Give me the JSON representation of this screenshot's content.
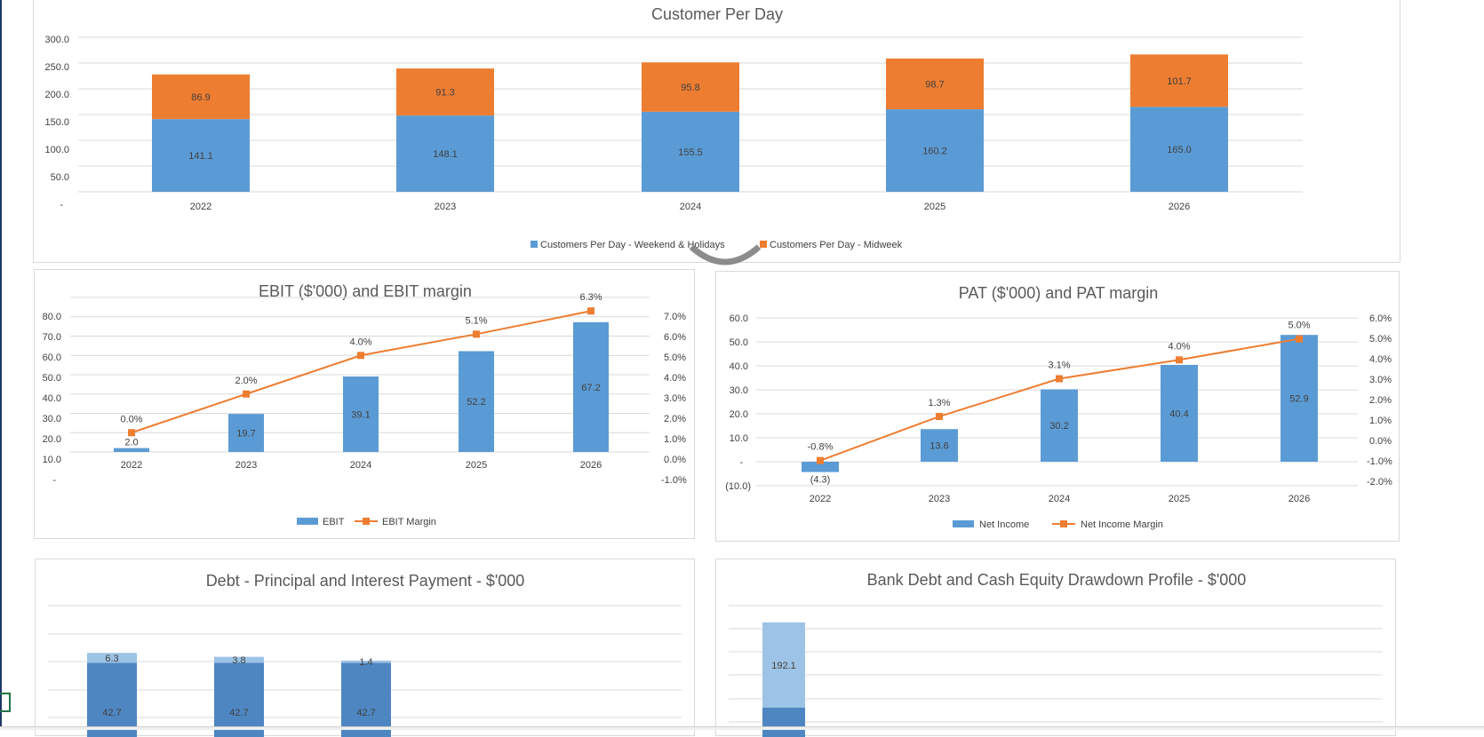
{
  "colors": {
    "blue": "#5B9BD5",
    "orange": "#ED7D31",
    "dark_blue": "#4E86C2",
    "light_blue": "#9DC3E6",
    "grid": "#D9D9D9",
    "text": "#404040",
    "title": "#595959"
  },
  "customers_chart": {
    "title": "Customer Per Day",
    "yticks": [
      "300.0",
      "250.0",
      "200.0",
      "150.0",
      "100.0",
      "50.0",
      "-"
    ],
    "legend": [
      "Customers Per Day - Weekend & Holidays",
      "Customers Per Day - Midweek"
    ]
  },
  "ebit_chart": {
    "title": "EBIT ($'000) and EBIT margin",
    "yticks": [
      "80.0",
      "70.0",
      "60.0",
      "50.0",
      "40.0",
      "30.0",
      "20.0",
      "10.0",
      "-"
    ],
    "y2ticks": [
      "7.0%",
      "6.0%",
      "5.0%",
      "4.0%",
      "3.0%",
      "2.0%",
      "1.0%",
      "0.0%",
      "-1.0%"
    ],
    "legend": [
      "EBIT",
      "EBIT Margin"
    ]
  },
  "pat_chart": {
    "title": "PAT ($'000) and PAT margin",
    "yticks": [
      "60.0",
      "50.0",
      "40.0",
      "30.0",
      "20.0",
      "10.0",
      "-",
      "(10.0)"
    ],
    "y2ticks": [
      "6.0%",
      "5.0%",
      "4.0%",
      "3.0%",
      "2.0%",
      "1.0%",
      "0.0%",
      "-1.0%",
      "-2.0%"
    ],
    "legend": [
      "Net Income",
      "Net Income Margin"
    ]
  },
  "debt_chart": {
    "title": "Debt - Principal and Interest Payment - $'000"
  },
  "drawdown_chart": {
    "title": "Bank Debt and Cash Equity Drawdown Profile - $'000"
  },
  "chart_data": [
    {
      "type": "bar",
      "stacked": true,
      "title": "Customer Per Day",
      "categories": [
        "2022",
        "2023",
        "2024",
        "2025",
        "2026"
      ],
      "series": [
        {
          "name": "Customers Per Day - Weekend & Holidays",
          "values": [
            141.1,
            148.1,
            155.5,
            160.2,
            165.0
          ],
          "labels": [
            "141.1",
            "148.1",
            "155.5",
            "160.2",
            "165.0"
          ]
        },
        {
          "name": "Customers Per Day - Midweek",
          "values": [
            86.9,
            91.3,
            95.8,
            98.7,
            101.7
          ],
          "labels": [
            "86.9",
            "91.3",
            "95.8",
            "98.7",
            "101.7"
          ]
        }
      ],
      "ylim": [
        0,
        300
      ],
      "grid": true,
      "legend_position": "bottom"
    },
    {
      "type": "bar",
      "combo": "bar-line",
      "title": "EBIT ($'000) and EBIT margin",
      "categories": [
        "2022",
        "2023",
        "2024",
        "2025",
        "2026"
      ],
      "series": [
        {
          "name": "EBIT",
          "axis": "left",
          "values": [
            2.0,
            19.7,
            39.1,
            52.2,
            67.2
          ],
          "labels": [
            "2.0",
            "19.7",
            "39.1",
            "52.2",
            "67.2"
          ]
        },
        {
          "name": "EBIT Margin",
          "axis": "right",
          "type": "line",
          "values": [
            0.0,
            2.0,
            4.0,
            5.1,
            6.3
          ],
          "labels": [
            "0.0%",
            "2.0%",
            "4.0%",
            "5.1%",
            "6.3%"
          ]
        }
      ],
      "ylim": [
        0,
        80
      ],
      "y2lim": [
        -1,
        7
      ],
      "grid": true,
      "legend_position": "bottom"
    },
    {
      "type": "bar",
      "combo": "bar-line",
      "title": "PAT ($'000) and PAT margin",
      "categories": [
        "2022",
        "2023",
        "2024",
        "2025",
        "2026"
      ],
      "series": [
        {
          "name": "Net Income",
          "axis": "left",
          "values": [
            -4.3,
            13.6,
            30.2,
            40.4,
            52.9
          ],
          "labels": [
            "(4.3)",
            "13.6",
            "30.2",
            "40.4",
            "52.9"
          ]
        },
        {
          "name": "Net Income Margin",
          "axis": "right",
          "type": "line",
          "values": [
            -0.8,
            1.3,
            3.1,
            4.0,
            5.0
          ],
          "labels": [
            "-0.8%",
            "1.3%",
            "3.1%",
            "4.0%",
            "5.0%"
          ]
        }
      ],
      "ylim": [
        -10,
        60
      ],
      "y2lim": [
        -2,
        6
      ],
      "grid": true,
      "legend_position": "bottom"
    },
    {
      "type": "bar",
      "stacked": true,
      "title": "Debt - Principal and Interest Payment - $'000",
      "categories": [
        "",
        "",
        ""
      ],
      "series": [
        {
          "values": [
            42.7,
            42.7,
            42.7
          ],
          "labels": [
            "42.7",
            "42.7",
            "42.7"
          ]
        },
        {
          "values": [
            6.3,
            3.8,
            1.4
          ],
          "labels": [
            "6.3",
            "3.8",
            "1.4"
          ]
        }
      ],
      "grid": true
    },
    {
      "type": "bar",
      "stacked": true,
      "title": "Bank Debt and Cash Equity Drawdown Profile - $'000",
      "categories": [
        ""
      ],
      "series": [
        {
          "values": [
            null
          ],
          "labels": [
            ""
          ]
        },
        {
          "values": [
            192.1
          ],
          "labels": [
            "192.1"
          ]
        }
      ],
      "grid": true
    }
  ]
}
